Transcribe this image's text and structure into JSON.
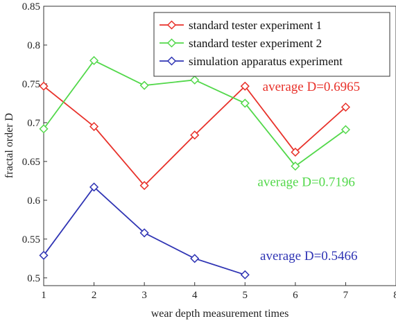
{
  "chart_data": {
    "type": "line",
    "xlabel": "wear depth measurement times",
    "ylabel": "fractal order D",
    "xlim": [
      1,
      8
    ],
    "ylim": [
      0.49,
      0.85
    ],
    "xticks": [
      1,
      2,
      3,
      4,
      5,
      6,
      7,
      8
    ],
    "yticks": [
      0.5,
      0.55,
      0.6,
      0.65,
      0.7,
      0.75,
      0.8,
      0.85
    ],
    "ytick_labels": [
      "0.5",
      "0.55",
      "0.6",
      "0.65",
      "0.7",
      "0.75",
      "0.8",
      "0.85"
    ],
    "grid": false,
    "legend_position": "top-right",
    "marker": "diamond",
    "series": [
      {
        "name": "standard tester experiment 1",
        "color": "#e8312a",
        "x": [
          1,
          2,
          3,
          4,
          5,
          6,
          7
        ],
        "values": [
          0.747,
          0.695,
          0.619,
          0.684,
          0.747,
          0.662,
          0.72
        ]
      },
      {
        "name": "standard tester experiment 2",
        "color": "#52d84a",
        "x": [
          1,
          2,
          3,
          4,
          5,
          6,
          7
        ],
        "values": [
          0.692,
          0.78,
          0.748,
          0.755,
          0.725,
          0.644,
          0.691
        ]
      },
      {
        "name": "simulation apparatus experiment",
        "color": "#2f34b4",
        "x": [
          1,
          2,
          3,
          4,
          5
        ],
        "values": [
          0.529,
          0.617,
          0.558,
          0.525,
          0.504
        ]
      }
    ],
    "annotations": [
      {
        "text": "average D=0.6965",
        "color": "#e8312a",
        "x": 5.35,
        "y": 0.741
      },
      {
        "text": "average D=0.7196",
        "color": "#52d84a",
        "x": 5.25,
        "y": 0.618
      },
      {
        "text": "average D=0.5466",
        "color": "#2f34b4",
        "x": 5.3,
        "y": 0.523
      }
    ]
  }
}
